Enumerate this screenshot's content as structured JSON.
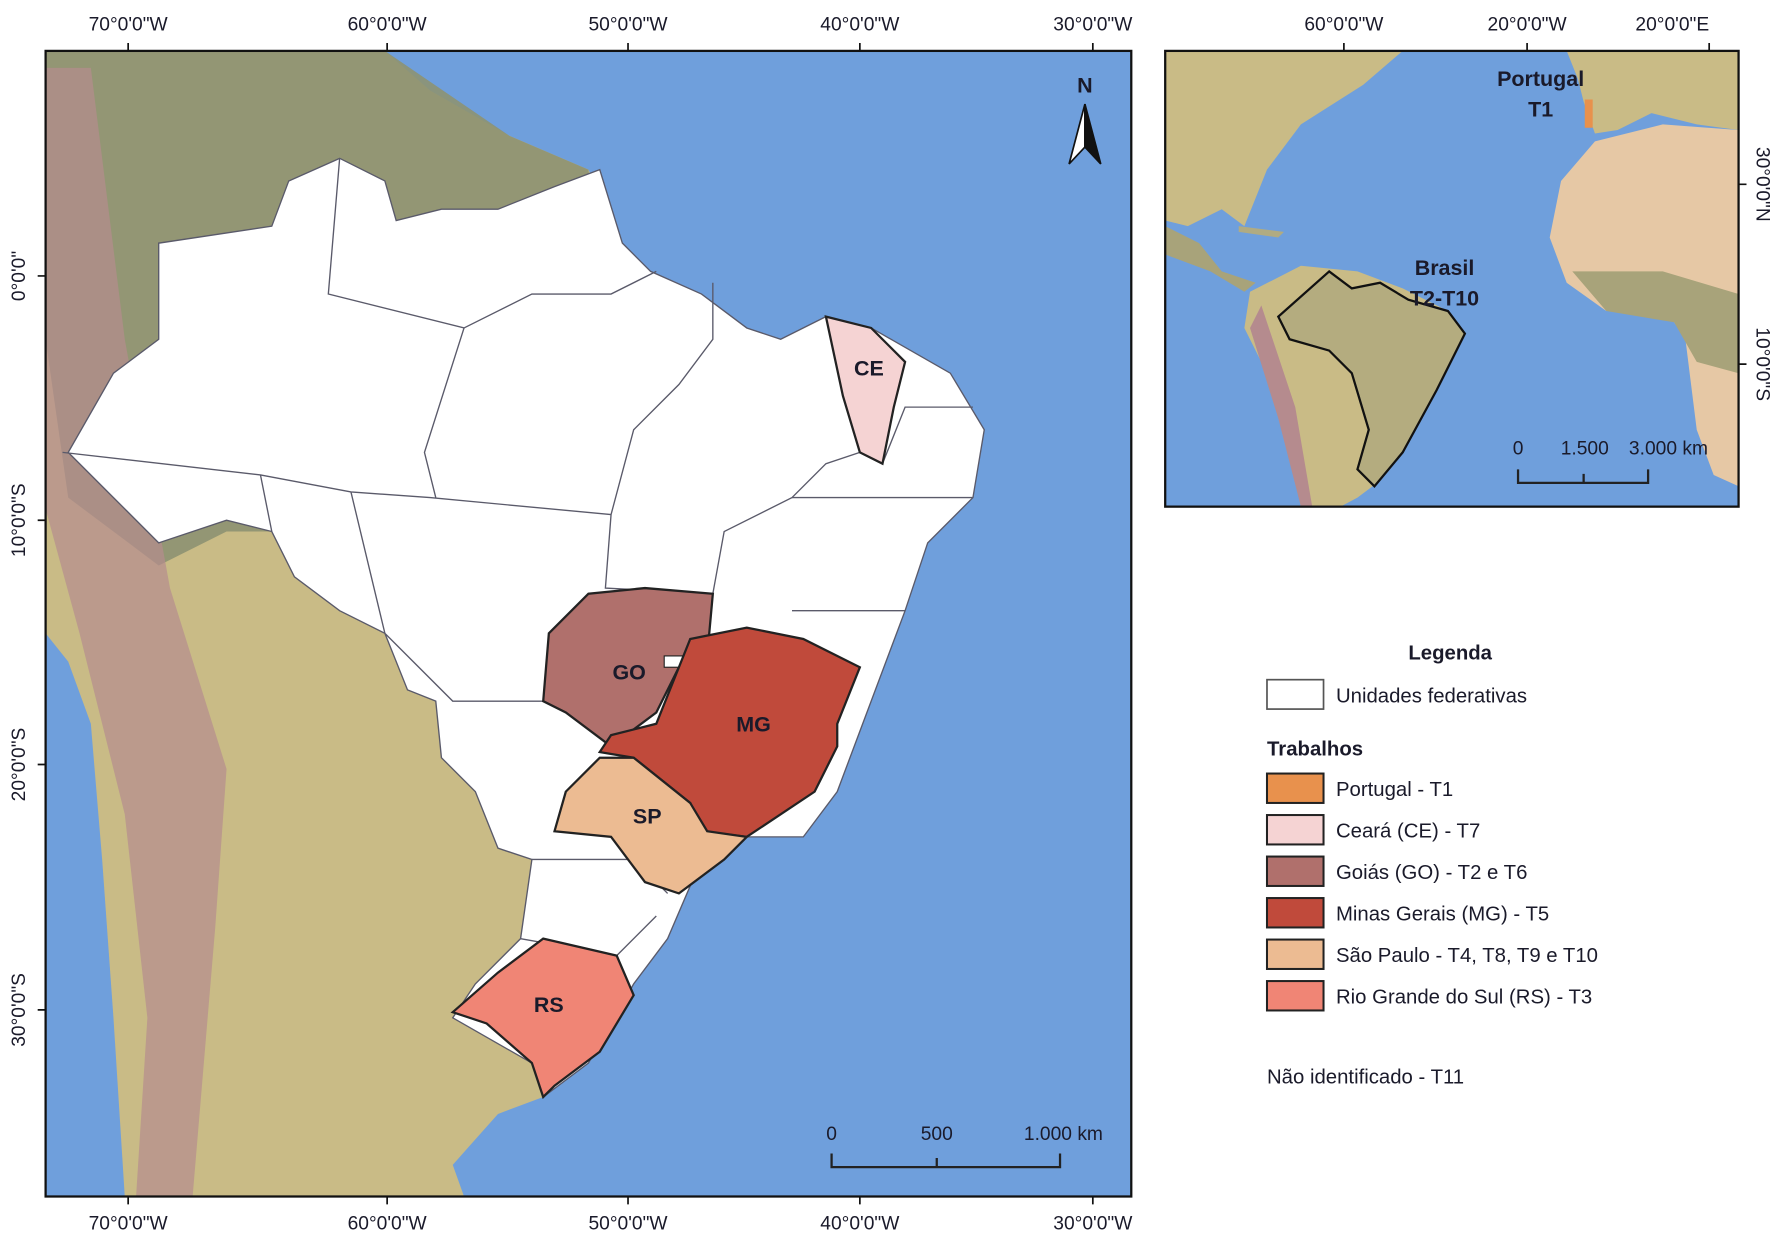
{
  "main_map": {
    "top_ticks": [
      "70°0'0\"W",
      "60°0'0\"W",
      "50°0'0\"W",
      "40°0'0\"W",
      "30°0'0\"W"
    ],
    "bottom_ticks": [
      "70°0'0\"W",
      "60°0'0\"W",
      "50°0'0\"W",
      "40°0'0\"W",
      "30°0'0\"W"
    ],
    "left_ticks": [
      "0°0'0\"",
      "10°0'0\"S",
      "20°0'0\"S",
      "30°0'0\"S"
    ],
    "north_label": "N",
    "state_labels": {
      "ce": "CE",
      "go": "GO",
      "mg": "MG",
      "sp": "SP",
      "rs": "RS"
    },
    "scale_bar": {
      "zero": "0",
      "mid": "500",
      "end": "1.000 km"
    }
  },
  "inset_map": {
    "top_ticks": [
      "60°0'0\"W",
      "20°0'0\"W",
      "20°0'0\"E"
    ],
    "right_ticks": [
      "30°0'0\"N",
      "10°0'0\"S"
    ],
    "portugal_label": "Portugal",
    "portugal_code": "T1",
    "brasil_label": "Brasil",
    "brasil_code": "T2-T10",
    "scale_bar": {
      "zero": "0",
      "mid": "1.500",
      "end": "3.000 km"
    }
  },
  "legend": {
    "title": "Legenda",
    "base_item": "Unidades federativas",
    "section_title": "Trabalhos",
    "items": [
      {
        "label": "Portugal - T1",
        "color": "#e8914d"
      },
      {
        "label": "Ceará (CE) - T7",
        "color": "#f5d3d3"
      },
      {
        "label": "Goiás (GO) - T2 e T6",
        "color": "#b0706c"
      },
      {
        "label": "Minas Gerais (MG) - T5",
        "color": "#c04a3b"
      },
      {
        "label": "São Paulo - T4, T8, T9 e T10",
        "color": "#ecbb92"
      },
      {
        "label": "Rio Grande do Sul (RS) - T3",
        "color": "#f08575"
      }
    ],
    "note": "Não identificado - T11"
  },
  "colors": {
    "ocean": "#6f9fdc",
    "land": "#c9bb86",
    "forest": "#8d9272",
    "state": "#ffffff"
  }
}
